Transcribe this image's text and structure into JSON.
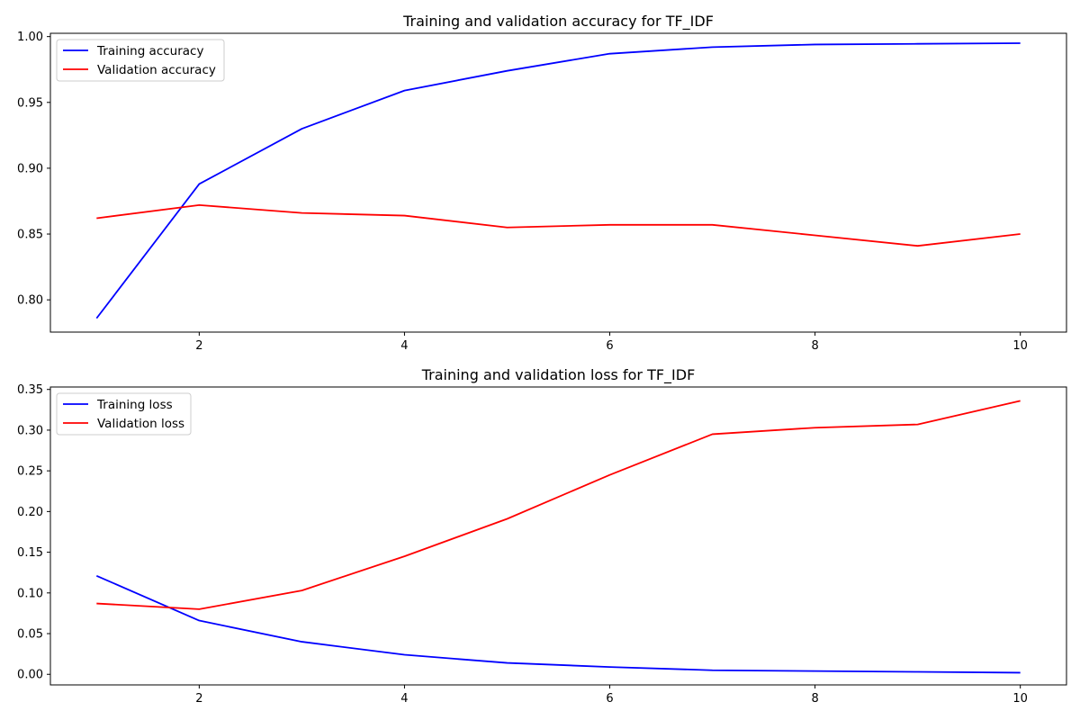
{
  "chart_data": [
    {
      "type": "line",
      "title": "Training and validation accuracy for TF_IDF",
      "xlabel": "",
      "ylabel": "",
      "x": [
        1,
        2,
        3,
        4,
        5,
        6,
        7,
        8,
        9,
        10
      ],
      "xlim": [
        0.55,
        10.45
      ],
      "ylim": [
        0.7755,
        1.0025
      ],
      "xticks": [
        2,
        4,
        6,
        8,
        10
      ],
      "yticks": [
        0.8,
        0.85,
        0.9,
        0.95,
        1.0
      ],
      "ytick_labels": [
        "0.80",
        "0.85",
        "0.90",
        "0.95",
        "1.00"
      ],
      "grid": false,
      "legend_position": "upper-left",
      "series": [
        {
          "name": "Training accuracy",
          "color": "#0000ff",
          "values": [
            0.786,
            0.888,
            0.93,
            0.959,
            0.974,
            0.987,
            0.992,
            0.994,
            0.9945,
            0.995
          ]
        },
        {
          "name": "Validation accuracy",
          "color": "#ff0000",
          "values": [
            0.862,
            0.872,
            0.866,
            0.864,
            0.855,
            0.857,
            0.857,
            0.849,
            0.841,
            0.85
          ]
        }
      ]
    },
    {
      "type": "line",
      "title": "Training and validation loss for TF_IDF",
      "xlabel": "",
      "ylabel": "",
      "x": [
        1,
        2,
        3,
        4,
        5,
        6,
        7,
        8,
        9,
        10
      ],
      "xlim": [
        0.55,
        10.45
      ],
      "ylim": [
        -0.013,
        0.353
      ],
      "xticks": [
        2,
        4,
        6,
        8,
        10
      ],
      "yticks": [
        0.0,
        0.05,
        0.1,
        0.15,
        0.2,
        0.25,
        0.3,
        0.35
      ],
      "ytick_labels": [
        "0.00",
        "0.05",
        "0.10",
        "0.15",
        "0.20",
        "0.25",
        "0.30",
        "0.35"
      ],
      "grid": false,
      "legend_position": "upper-left",
      "series": [
        {
          "name": "Training loss",
          "color": "#0000ff",
          "values": [
            0.121,
            0.066,
            0.04,
            0.024,
            0.014,
            0.009,
            0.005,
            0.004,
            0.003,
            0.002
          ]
        },
        {
          "name": "Validation loss",
          "color": "#ff0000",
          "values": [
            0.087,
            0.08,
            0.103,
            0.145,
            0.191,
            0.245,
            0.295,
            0.303,
            0.307,
            0.336
          ]
        }
      ]
    }
  ]
}
